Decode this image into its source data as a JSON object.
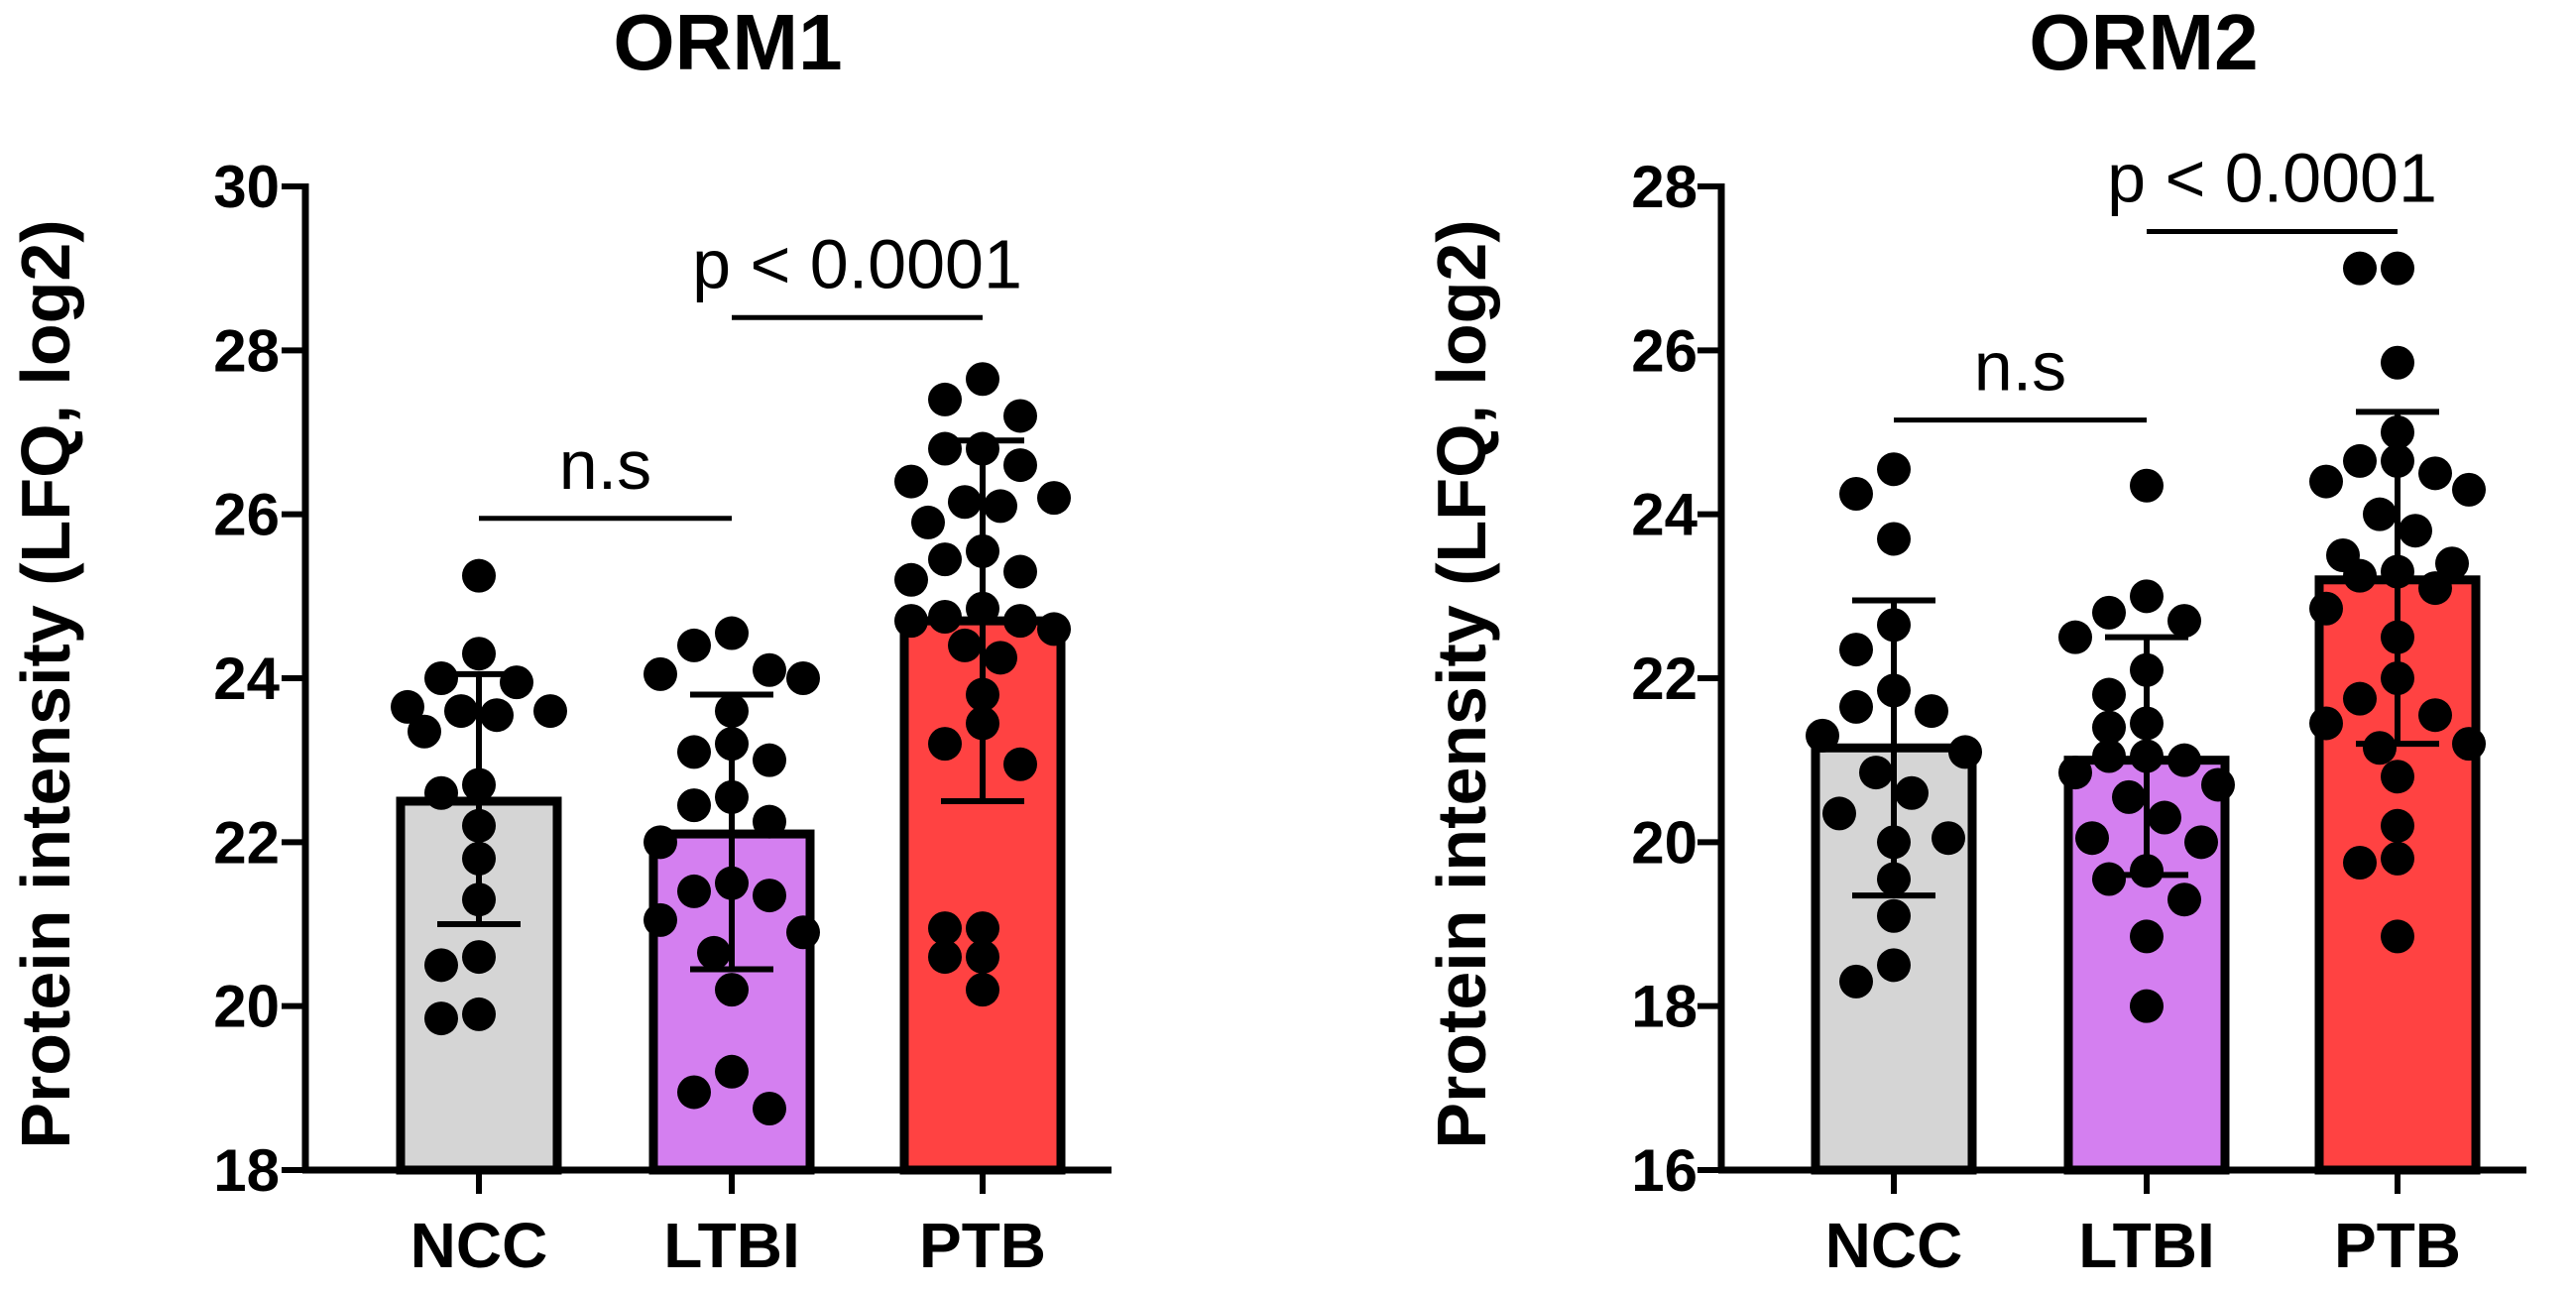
{
  "colors": {
    "NCC": "#d5d5d5",
    "LTBI": "#d47ff0",
    "PTB": "#ff4242",
    "stroke": "#000000"
  },
  "chart_data": [
    {
      "type": "bar",
      "title": "ORM1",
      "ylabel": "Protein intensity (LFQ, log2)",
      "xlabel": "",
      "ylim": [
        18,
        30
      ],
      "yticks": [
        18,
        20,
        22,
        24,
        26,
        28,
        30
      ],
      "ytick_labels": [
        "18",
        "20",
        "22",
        "24",
        "26",
        "28",
        "30"
      ],
      "categories": [
        "NCC",
        "LTBI",
        "PTB"
      ],
      "values": [
        22.5,
        22.1,
        24.7
      ],
      "error_low": [
        21.0,
        20.45,
        22.5
      ],
      "error_high": [
        24.05,
        23.8,
        26.9
      ],
      "points": [
        [
          25.25,
          24.3,
          24.0,
          23.95,
          23.65,
          23.6,
          23.6,
          23.55,
          23.35,
          22.7,
          22.6,
          22.2,
          21.8,
          21.3,
          20.6,
          20.5,
          19.9,
          19.85
        ],
        [
          24.55,
          24.4,
          24.1,
          24.05,
          24.0,
          23.6,
          23.2,
          23.1,
          23.0,
          22.55,
          22.45,
          22.25,
          22.0,
          21.5,
          21.4,
          21.35,
          21.05,
          20.9,
          20.65,
          20.2,
          19.2,
          18.95,
          18.75
        ],
        [
          27.65,
          27.4,
          27.2,
          26.8,
          26.8,
          26.6,
          26.4,
          26.2,
          26.15,
          26.1,
          25.9,
          25.55,
          25.45,
          25.3,
          25.2,
          24.85,
          24.75,
          24.7,
          24.7,
          24.6,
          24.4,
          24.25,
          23.8,
          23.45,
          23.2,
          22.95,
          20.95,
          20.95,
          20.6,
          20.6,
          20.2
        ]
      ],
      "comparisons": [
        {
          "from": "NCC",
          "to": "LTBI",
          "label": "n.s",
          "y": 25.95
        },
        {
          "from": "LTBI",
          "to": "PTB",
          "label": "p < 0.0001",
          "y": 28.4
        }
      ]
    },
    {
      "type": "bar",
      "title": "ORM2",
      "ylabel": "Protein intensity (LFQ, log2)",
      "xlabel": "",
      "ylim": [
        16,
        28
      ],
      "yticks": [
        16,
        18,
        20,
        22,
        24,
        26,
        28
      ],
      "ytick_labels": [
        "16",
        "18",
        "20",
        "22",
        "24",
        "26",
        "28"
      ],
      "categories": [
        "NCC",
        "LTBI",
        "PTB"
      ],
      "values": [
        21.15,
        21.0,
        23.2
      ],
      "error_low": [
        19.35,
        19.6,
        21.2
      ],
      "error_high": [
        22.95,
        22.5,
        25.25
      ],
      "points": [
        [
          24.55,
          24.25,
          23.7,
          22.65,
          22.35,
          21.85,
          21.65,
          21.6,
          21.3,
          21.1,
          20.85,
          20.6,
          20.35,
          20.05,
          20.0,
          19.55,
          19.1,
          18.5,
          18.3
        ],
        [
          24.35,
          23.0,
          22.8,
          22.7,
          22.5,
          22.1,
          21.8,
          21.45,
          21.4,
          21.05,
          21.05,
          21.0,
          20.85,
          20.7,
          20.55,
          20.3,
          20.05,
          20.0,
          19.65,
          19.55,
          19.3,
          18.85,
          18.0
        ],
        [
          27.0,
          27.0,
          25.85,
          25.0,
          24.65,
          24.65,
          24.5,
          24.4,
          24.3,
          24.0,
          23.8,
          23.5,
          23.4,
          23.3,
          23.25,
          23.1,
          22.85,
          22.5,
          22.0,
          21.75,
          21.55,
          21.45,
          21.2,
          21.15,
          20.8,
          20.2,
          19.75,
          19.8,
          18.85
        ]
      ],
      "comparisons": [
        {
          "from": "NCC",
          "to": "LTBI",
          "label": "n.s",
          "y": 25.15
        },
        {
          "from": "LTBI",
          "to": "PTB",
          "label": "p < 0.0001",
          "y": 27.45
        }
      ]
    }
  ]
}
